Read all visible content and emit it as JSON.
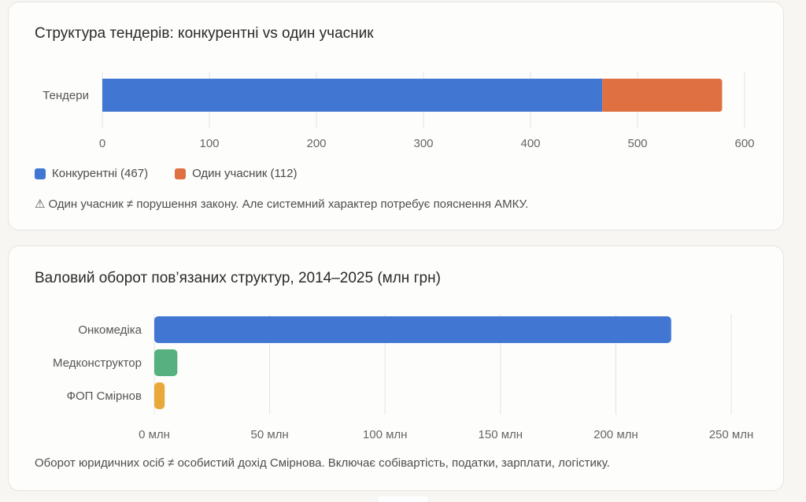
{
  "charts": {
    "tenders": {
      "title": "Структура тендерів: конкурентні vs один учасник",
      "legend": [
        "Конкурентні (467)",
        "Один учасник (112)"
      ],
      "note": "Один учасник ≠ порушення закону. Але системний характер потребує пояснення АМКУ.",
      "note_icon": "warning-icon"
    },
    "turnover": {
      "title": "Валовий оборот пов’язаних структур, 2014–2025 (млн грн)",
      "note": "Оборот юридичних осіб ≠ особистий дохід Смірнова. Включає собівартість, податки, зарплати, логістику."
    }
  },
  "colors": {
    "competitive": "#4177d3",
    "single": "#df7042",
    "onkomedika": "#4177d3",
    "medkonstruktor": "#56b07f",
    "fop": "#e8a93a",
    "grid": "#e3e3e3",
    "tick": "#666666"
  },
  "chart_data": [
    {
      "type": "bar",
      "orientation": "horizontal",
      "stacked": true,
      "title": "Структура тендерів: конкурентні vs один учасник",
      "categories": [
        "Тендери"
      ],
      "series": [
        {
          "name": "Конкурентні (467)",
          "values": [
            467
          ]
        },
        {
          "name": "Один учасник (112)",
          "values": [
            112
          ]
        }
      ],
      "xlim": [
        0,
        600
      ],
      "xticks": [
        "0",
        "100",
        "200",
        "300",
        "400",
        "500",
        "600"
      ],
      "grid": true,
      "legend": "bottom-left"
    },
    {
      "type": "bar",
      "orientation": "horizontal",
      "title": "Валовий оборот пов’язаних структур, 2014–2025 (млн грн)",
      "categories": [
        "Онкомедіка",
        "Медконструктор",
        "ФОП Смірнов"
      ],
      "values": [
        224,
        10,
        4.5
      ],
      "xlim": [
        0,
        250
      ],
      "xticks": [
        "0 млн",
        "50 млн",
        "100 млн",
        "150 млн",
        "200 млн",
        "250 млн"
      ],
      "grid": true
    }
  ]
}
